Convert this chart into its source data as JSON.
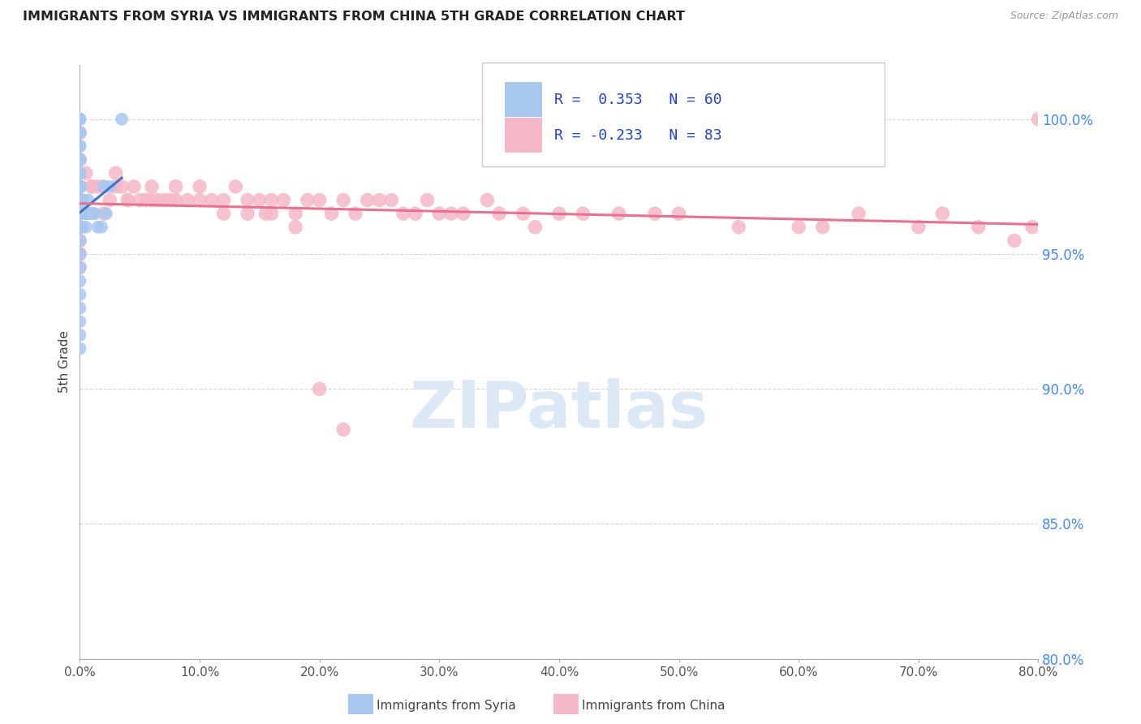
{
  "title": "IMMIGRANTS FROM SYRIA VS IMMIGRANTS FROM CHINA 5TH GRADE CORRELATION CHART",
  "source": "Source: ZipAtlas.com",
  "xlabel_ticks": [
    0.0,
    10.0,
    20.0,
    30.0,
    40.0,
    50.0,
    60.0,
    70.0,
    80.0
  ],
  "ylabel_ticks": [
    80.0,
    85.0,
    90.0,
    95.0,
    100.0
  ],
  "xlim": [
    0,
    80
  ],
  "ylim": [
    80.0,
    102.0
  ],
  "ylabel": "5th Grade",
  "xlabel_legend1": "Immigrants from Syria",
  "xlabel_legend2": "Immigrants from China",
  "R_syria": 0.353,
  "N_syria": 60,
  "R_china": -0.233,
  "N_china": 83,
  "color_syria": "#a8c8f0",
  "color_china": "#f5b8c8",
  "line_color_syria": "#4472c4",
  "line_color_china": "#e87090",
  "legend_R_color": "#2244cc",
  "watermark_color": "#dce8f5",
  "syria_x": [
    0.0,
    0.0,
    0.0,
    0.0,
    0.0,
    0.0,
    0.0,
    0.0,
    0.0,
    0.0,
    0.0,
    0.0,
    0.0,
    0.0,
    0.0,
    0.0,
    0.0,
    0.0,
    0.0,
    0.0,
    0.1,
    0.1,
    0.1,
    0.1,
    0.1,
    0.2,
    0.2,
    0.2,
    0.3,
    0.4,
    0.5,
    0.6,
    0.7,
    0.8,
    1.0,
    1.2,
    1.5,
    1.8,
    2.0,
    2.2,
    0.0,
    0.0,
    0.0,
    0.0,
    0.05,
    0.05,
    0.1,
    0.15,
    0.2,
    0.25,
    0.0,
    0.0,
    0.0,
    0.0,
    0.0,
    0.5,
    0.8,
    1.2,
    2.5,
    3.5
  ],
  "syria_y": [
    100.0,
    100.0,
    100.0,
    99.5,
    99.5,
    99.0,
    99.0,
    98.5,
    98.5,
    98.0,
    98.0,
    97.5,
    97.5,
    97.0,
    97.0,
    97.0,
    96.5,
    96.5,
    96.0,
    96.0,
    97.5,
    97.0,
    97.0,
    96.5,
    96.5,
    97.0,
    96.5,
    96.0,
    97.0,
    96.5,
    96.5,
    96.5,
    97.0,
    96.5,
    96.5,
    96.5,
    96.0,
    96.0,
    97.5,
    96.5,
    95.5,
    95.0,
    94.5,
    94.0,
    96.5,
    96.0,
    97.0,
    96.5,
    96.5,
    96.5,
    93.5,
    93.0,
    92.5,
    92.0,
    91.5,
    96.0,
    96.5,
    96.5,
    97.5,
    100.0
  ],
  "china_x": [
    0.0,
    0.0,
    0.0,
    0.0,
    0.0,
    0.0,
    0.0,
    0.0,
    0.0,
    0.0,
    0.5,
    1.0,
    1.5,
    2.0,
    2.5,
    3.0,
    3.5,
    4.0,
    4.5,
    5.0,
    5.5,
    6.0,
    6.5,
    7.0,
    7.5,
    8.0,
    9.0,
    10.0,
    11.0,
    12.0,
    13.0,
    14.0,
    15.0,
    15.5,
    16.0,
    17.0,
    18.0,
    19.0,
    20.0,
    21.0,
    22.0,
    23.0,
    24.0,
    25.0,
    26.0,
    27.0,
    28.0,
    29.0,
    30.0,
    31.0,
    32.0,
    34.0,
    35.0,
    37.0,
    38.0,
    40.0,
    42.0,
    45.0,
    48.0,
    50.0,
    55.0,
    60.0,
    62.0,
    65.0,
    70.0,
    72.0,
    75.0,
    78.0,
    79.5,
    80.0,
    1.0,
    2.0,
    3.0,
    4.0,
    6.0,
    8.0,
    10.0,
    12.0,
    14.0,
    16.0,
    18.0,
    20.0,
    22.0
  ],
  "china_y": [
    99.5,
    98.5,
    98.0,
    97.5,
    97.0,
    96.5,
    96.0,
    95.5,
    95.0,
    94.5,
    98.0,
    97.5,
    97.5,
    97.5,
    97.0,
    98.0,
    97.5,
    97.0,
    97.5,
    97.0,
    97.0,
    97.5,
    97.0,
    97.0,
    97.0,
    97.5,
    97.0,
    97.5,
    97.0,
    97.0,
    97.5,
    97.0,
    97.0,
    96.5,
    97.0,
    97.0,
    96.5,
    97.0,
    97.0,
    96.5,
    97.0,
    96.5,
    97.0,
    97.0,
    97.0,
    96.5,
    96.5,
    97.0,
    96.5,
    96.5,
    96.5,
    97.0,
    96.5,
    96.5,
    96.0,
    96.5,
    96.5,
    96.5,
    96.5,
    96.5,
    96.0,
    96.0,
    96.0,
    96.5,
    96.0,
    96.5,
    96.0,
    95.5,
    96.0,
    100.0,
    97.5,
    96.5,
    97.5,
    97.0,
    97.0,
    97.0,
    97.0,
    96.5,
    96.5,
    96.5,
    96.0,
    90.0,
    88.5
  ]
}
